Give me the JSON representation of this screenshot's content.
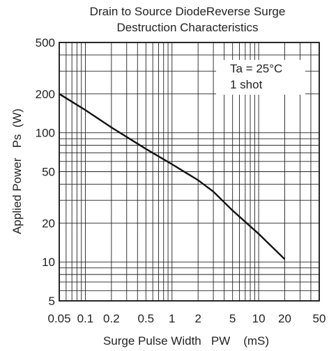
{
  "chart_data": {
    "type": "line",
    "title_lines": [
      "Drain to Source DiodeReverse Surge",
      "Destruction Characteristics"
    ],
    "xlabel": "Surge Pulse Width   PW    (mS)",
    "ylabel": "Applied Power   Ps  (W)",
    "x_scale": "log",
    "y_scale": "log",
    "xlim": [
      0.05,
      50
    ],
    "ylim": [
      5,
      500
    ],
    "x_ticks": [
      {
        "value": 0.05,
        "label": "0.05"
      },
      {
        "value": 0.1,
        "label": "0.1"
      },
      {
        "value": 0.2,
        "label": "0.2"
      },
      {
        "value": 0.5,
        "label": "0.5"
      },
      {
        "value": 1,
        "label": "1"
      },
      {
        "value": 2,
        "label": "2"
      },
      {
        "value": 5,
        "label": "5"
      },
      {
        "value": 10,
        "label": "10"
      },
      {
        "value": 20,
        "label": "20"
      },
      {
        "value": 50,
        "label": "50"
      }
    ],
    "y_ticks": [
      {
        "value": 5,
        "label": "5"
      },
      {
        "value": 10,
        "label": "10"
      },
      {
        "value": 20,
        "label": "20"
      },
      {
        "value": 50,
        "label": "50"
      },
      {
        "value": 100,
        "label": "100"
      },
      {
        "value": 200,
        "label": "200"
      },
      {
        "value": 500,
        "label": "500"
      }
    ],
    "grid": true,
    "annotation_lines": [
      "Ta = 25°C",
      "1 shot"
    ],
    "series": [
      {
        "x": [
          0.05,
          0.1,
          0.2,
          0.5,
          1,
          2,
          3,
          5,
          10,
          20
        ],
        "y": [
          200,
          150,
          110,
          75,
          57,
          43,
          35,
          25,
          16.5,
          10.5
        ]
      }
    ]
  }
}
